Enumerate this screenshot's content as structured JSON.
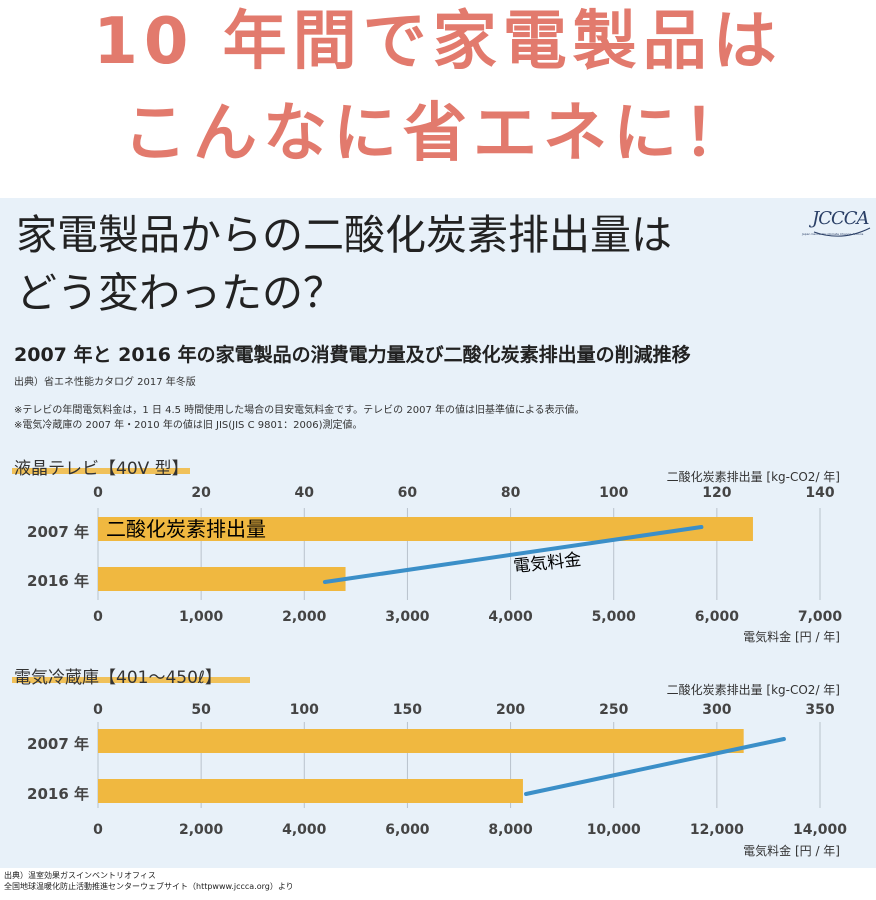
{
  "headline": {
    "line1": "10 年間で家電製品は",
    "line2": "こんなに省エネに！"
  },
  "panel": {
    "question_line1": "家電製品からの二酸化炭素排出量は",
    "question_line2": "どう変わったの？",
    "logo_text": "JCCCA",
    "logo_subtext": "Japan Center for Climate Change Actions",
    "subtitle": "2007 年と 2016 年の家電製品の消費電力量及び二酸化炭素排出量の削減推移",
    "source": "出典）省エネ性能カタログ 2017 年冬版",
    "note1": "※テレビの年間電気料金は，1 日 4.5 時間使用した場合の目安電気料金です。テレビの 2007 年の値は旧基準値による表示値。",
    "note2": "※電気冷蔵庫の 2007 年・2010 年の値は旧 JIS(JIS C 9801：2006)測定値。"
  },
  "colors": {
    "bar": "#f0b840",
    "line": "#3b8fc8",
    "headline": "#e27a6d",
    "panel": "#e8f1f9"
  },
  "chart_data": [
    {
      "type": "bar",
      "section_title": "液晶テレビ【40V 型】",
      "categories": [
        "2007 年",
        "2016 年"
      ],
      "top_axis_label": "二酸化炭素排出量 [kg-CO2/ 年]",
      "top_ticks": [
        "0",
        "20",
        "40",
        "60",
        "80",
        "100",
        "120",
        "140"
      ],
      "top_range": [
        0,
        140
      ],
      "bottom_axis_label": "電気料金 [円 / 年]",
      "bottom_ticks": [
        "0",
        "1,000",
        "2,000",
        "3,000",
        "4,000",
        "5,000",
        "6,000",
        "7,000"
      ],
      "bottom_range": [
        0,
        7000
      ],
      "series": [
        {
          "name": "二酸化炭素排出量",
          "type": "bar",
          "axis": "top",
          "values": [
            127,
            48
          ]
        },
        {
          "name": "電気料金",
          "type": "line",
          "axis": "bottom",
          "values": [
            5850,
            2200
          ]
        }
      ]
    },
    {
      "type": "bar",
      "section_title": "電気冷蔵庫【401～450ℓ】",
      "categories": [
        "2007 年",
        "2016 年"
      ],
      "top_axis_label": "二酸化炭素排出量 [kg-CO2/ 年]",
      "top_ticks": [
        "0",
        "50",
        "100",
        "150",
        "200",
        "250",
        "300",
        "350"
      ],
      "top_range": [
        0,
        350
      ],
      "bottom_axis_label": "電気料金 [円 / 年]",
      "bottom_ticks": [
        "0",
        "2,000",
        "4,000",
        "6,000",
        "8,000",
        "10,000",
        "12,000",
        "14,000"
      ],
      "bottom_range": [
        0,
        14000
      ],
      "series": [
        {
          "type": "bar",
          "axis": "top",
          "values": [
            313,
            206
          ]
        },
        {
          "type": "line",
          "axis": "bottom",
          "values": [
            13300,
            8300
          ]
        }
      ]
    }
  ],
  "footer": {
    "line1": "出典）温室効果ガスインベントリオフィス",
    "line2": "全国地球温暖化防止活動推進センターウェブサイト（httpwww.jccca.org）より"
  }
}
